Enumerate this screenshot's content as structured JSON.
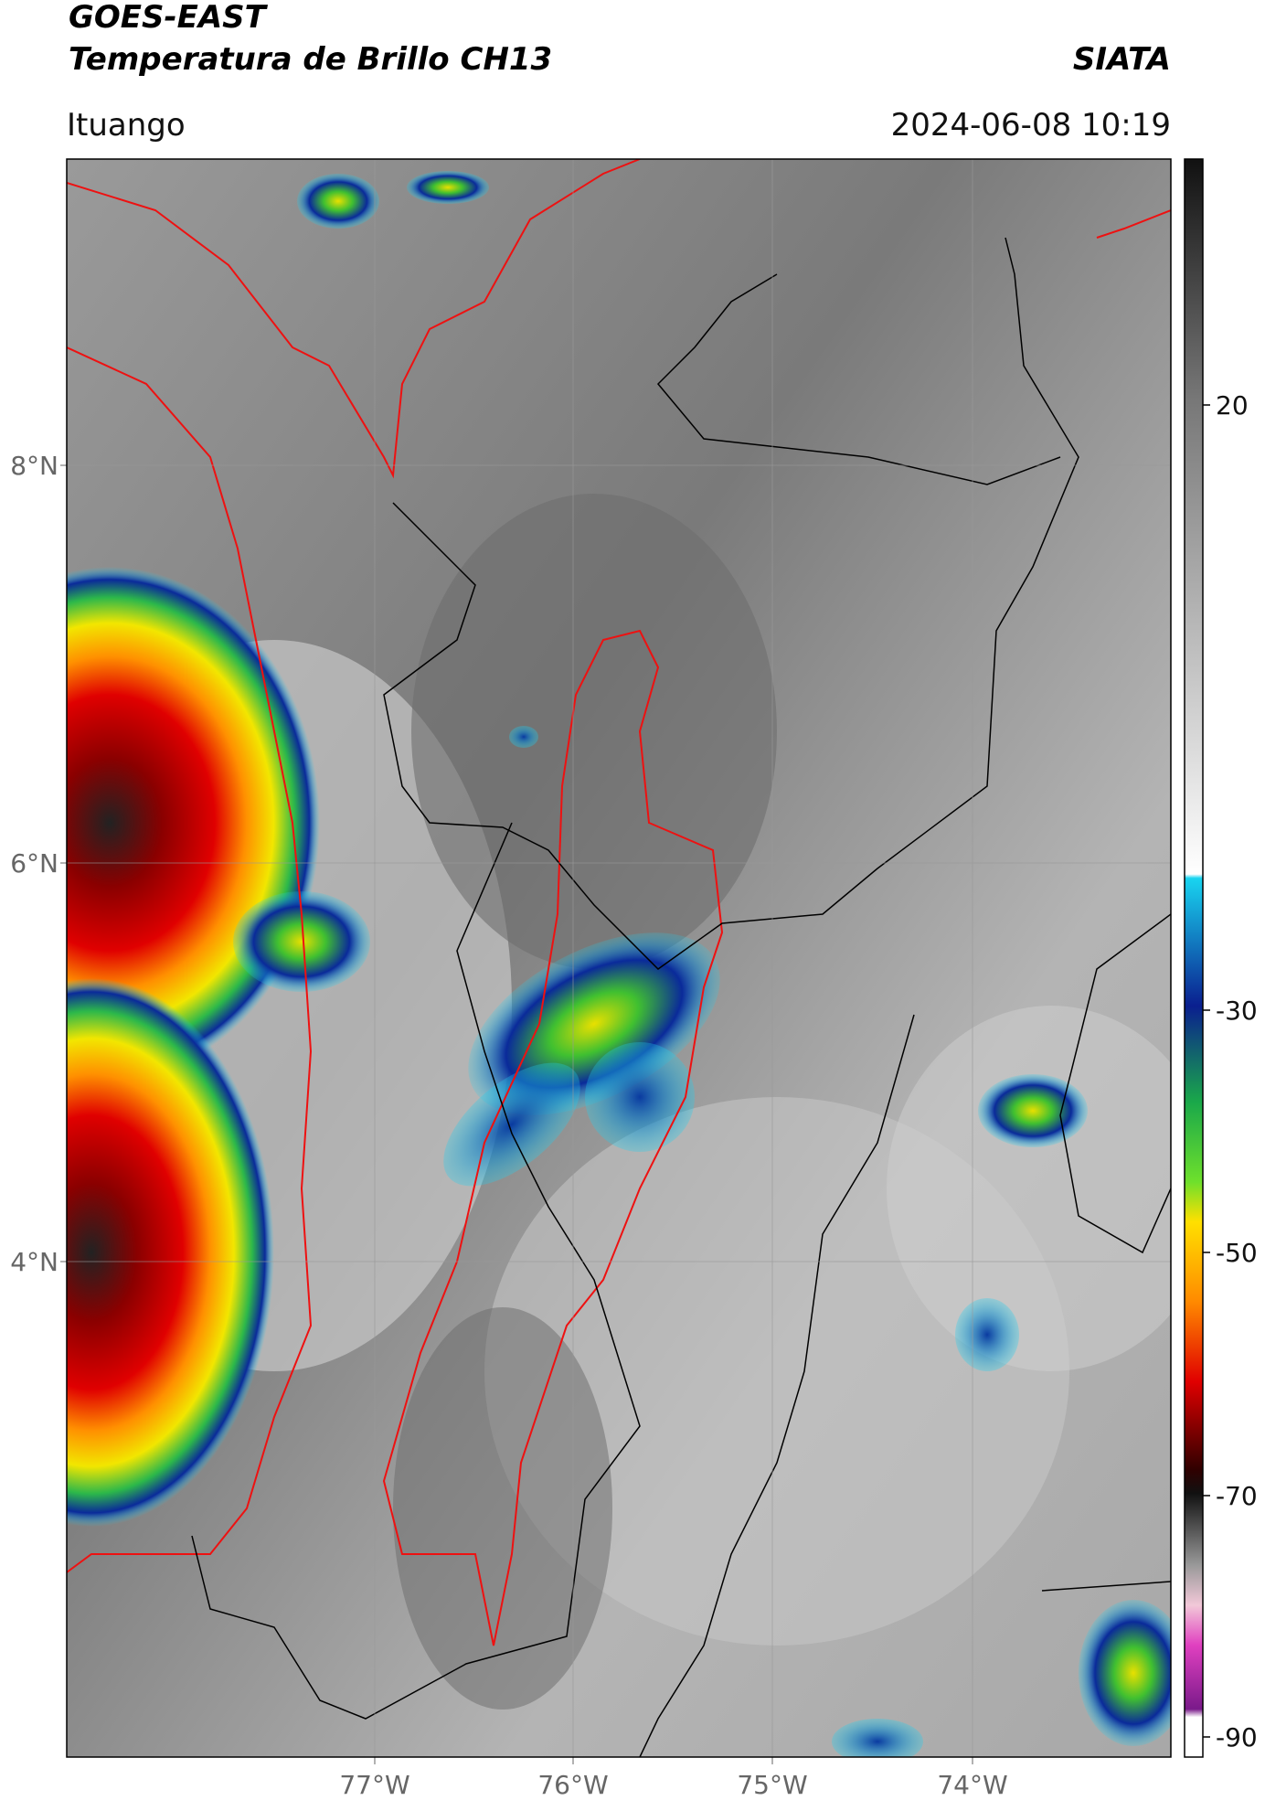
{
  "header": {
    "source": "GOES-EAST",
    "product": "Temperatura de Brillo CH13",
    "agency": "SIATA",
    "region": "Ituango",
    "timestamp": "2024-06-08 10:19"
  },
  "map": {
    "lat_labels": [
      "8°N",
      "6°N",
      "4°N"
    ],
    "lon_labels": [
      "77°W",
      "76°W",
      "75°W",
      "74°W"
    ]
  },
  "colorbar": {
    "ticks": [
      "20",
      "-30",
      "-50",
      "-70",
      "-90"
    ]
  }
}
